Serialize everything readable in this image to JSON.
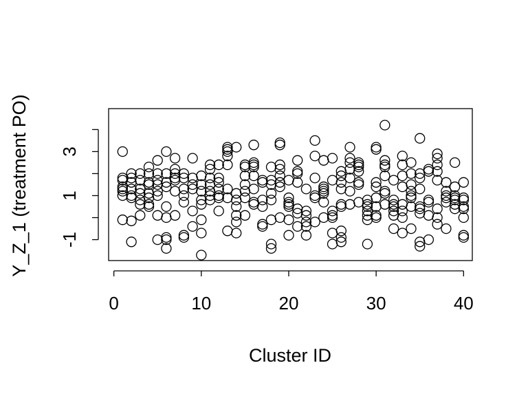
{
  "chart_data": {
    "type": "scatter",
    "title": "",
    "xlabel": "Cluster ID",
    "ylabel": "Y_Z_1 (treatment PO)",
    "xlim": [
      -0.6,
      41.0
    ],
    "ylim": [
      -1.95,
      4.95
    ],
    "x_ticks": [
      0,
      10,
      20,
      30,
      40
    ],
    "x_tick_labels": [
      "0",
      "10",
      "20",
      "30",
      "40"
    ],
    "y_ticks": [
      -1,
      0,
      1,
      2,
      3,
      4
    ],
    "y_tick_labels": [
      "-1",
      "",
      "1",
      "",
      "3",
      ""
    ],
    "grid": false,
    "legend": "none",
    "point_style": "open-circle",
    "colors": {
      "points": "#000000",
      "axes": "#000000",
      "background": "#ffffff"
    },
    "points": [
      [
        1,
        3.0
      ],
      [
        1,
        1.8
      ],
      [
        1,
        1.7
      ],
      [
        1,
        1.4
      ],
      [
        1,
        1.3
      ],
      [
        1,
        1.2
      ],
      [
        1,
        1.0
      ],
      [
        1,
        -0.1
      ],
      [
        2,
        2.0
      ],
      [
        2,
        1.8
      ],
      [
        2,
        1.6
      ],
      [
        2,
        1.3
      ],
      [
        2,
        1.0
      ],
      [
        2,
        0.9
      ],
      [
        2,
        -0.15
      ],
      [
        2,
        -1.1
      ],
      [
        3,
        2.0
      ],
      [
        3,
        1.7
      ],
      [
        3,
        1.3
      ],
      [
        3,
        1.1
      ],
      [
        3,
        0.8
      ],
      [
        3,
        0.6
      ],
      [
        3,
        0.1
      ],
      [
        4,
        2.3
      ],
      [
        4,
        2.0
      ],
      [
        4,
        1.6
      ],
      [
        4,
        1.5
      ],
      [
        4,
        1.1
      ],
      [
        4,
        0.9
      ],
      [
        4,
        0.6
      ],
      [
        4,
        0.5
      ],
      [
        5,
        2.6
      ],
      [
        5,
        2.0
      ],
      [
        5,
        1.7
      ],
      [
        5,
        1.5
      ],
      [
        5,
        1.2
      ],
      [
        5,
        1.0
      ],
      [
        5,
        0.1
      ],
      [
        5,
        -1.0
      ],
      [
        6,
        3.0
      ],
      [
        6,
        2.0
      ],
      [
        6,
        1.6
      ],
      [
        6,
        1.4
      ],
      [
        6,
        0.5
      ],
      [
        6,
        0.0
      ],
      [
        6,
        -0.9
      ],
      [
        6,
        -1.0
      ],
      [
        6,
        -1.4
      ],
      [
        7,
        2.7
      ],
      [
        7,
        2.2
      ],
      [
        7,
        2.0
      ],
      [
        7,
        1.8
      ],
      [
        7,
        1.7
      ],
      [
        7,
        1.2
      ],
      [
        7,
        0.1
      ],
      [
        8,
        2.0
      ],
      [
        8,
        1.8
      ],
      [
        8,
        1.3
      ],
      [
        8,
        1.0
      ],
      [
        8,
        0.7
      ],
      [
        8,
        -0.8
      ],
      [
        8,
        -0.9
      ],
      [
        9,
        2.7
      ],
      [
        9,
        1.8
      ],
      [
        9,
        1.5
      ],
      [
        9,
        1.3
      ],
      [
        9,
        0.3
      ],
      [
        9,
        -0.4
      ],
      [
        10,
        1.9
      ],
      [
        10,
        1.5
      ],
      [
        10,
        1.2
      ],
      [
        10,
        0.8
      ],
      [
        10,
        0.6
      ],
      [
        10,
        -0.1
      ],
      [
        10,
        -0.7
      ],
      [
        10,
        -1.7
      ],
      [
        11,
        2.4
      ],
      [
        11,
        2.2
      ],
      [
        11,
        1.8
      ],
      [
        11,
        1.5
      ],
      [
        11,
        1.2
      ],
      [
        11,
        1.0
      ],
      [
        11,
        0.8
      ],
      [
        12,
        2.4
      ],
      [
        12,
        1.8
      ],
      [
        12,
        1.6
      ],
      [
        12,
        1.3
      ],
      [
        12,
        1.0
      ],
      [
        12,
        0.9
      ],
      [
        12,
        0.3
      ],
      [
        13,
        3.2
      ],
      [
        13,
        3.1
      ],
      [
        13,
        3.0
      ],
      [
        13,
        2.8
      ],
      [
        13,
        2.4
      ],
      [
        13,
        1.3
      ],
      [
        13,
        0.9
      ],
      [
        13,
        -0.6
      ],
      [
        14,
        3.2
      ],
      [
        14,
        1.1
      ],
      [
        14,
        0.8
      ],
      [
        14,
        0.5
      ],
      [
        14,
        0.1
      ],
      [
        14,
        -0.2
      ],
      [
        14,
        -0.7
      ],
      [
        15,
        2.4
      ],
      [
        15,
        2.3
      ],
      [
        15,
        1.9
      ],
      [
        15,
        1.5
      ],
      [
        15,
        1.2
      ],
      [
        15,
        0.9
      ],
      [
        15,
        0.1
      ],
      [
        16,
        3.3
      ],
      [
        16,
        2.5
      ],
      [
        16,
        2.4
      ],
      [
        16,
        2.3
      ],
      [
        16,
        1.9
      ],
      [
        16,
        1.3
      ],
      [
        16,
        0.7
      ],
      [
        16,
        0.6
      ],
      [
        17,
        1.7
      ],
      [
        17,
        1.6
      ],
      [
        17,
        0.8
      ],
      [
        17,
        0.5
      ],
      [
        17,
        -0.3
      ],
      [
        17,
        -0.4
      ],
      [
        18,
        2.3
      ],
      [
        18,
        1.7
      ],
      [
        18,
        1.5
      ],
      [
        18,
        1.1
      ],
      [
        18,
        0.8
      ],
      [
        18,
        -0.1
      ],
      [
        18,
        -1.2
      ],
      [
        18,
        -1.4
      ],
      [
        19,
        3.4
      ],
      [
        19,
        3.3
      ],
      [
        19,
        2.4
      ],
      [
        19,
        2.2
      ],
      [
        19,
        1.9
      ],
      [
        19,
        1.6
      ],
      [
        19,
        1.4
      ],
      [
        19,
        0.0
      ],
      [
        20,
        1.7
      ],
      [
        20,
        0.9
      ],
      [
        20,
        0.7
      ],
      [
        20,
        0.6
      ],
      [
        20,
        0.5
      ],
      [
        20,
        -0.1
      ],
      [
        20,
        -0.8
      ],
      [
        21,
        2.6
      ],
      [
        21,
        2.1
      ],
      [
        21,
        2.0
      ],
      [
        21,
        1.6
      ],
      [
        21,
        0.4
      ],
      [
        21,
        0.2
      ],
      [
        21,
        -0.4
      ],
      [
        22,
        1.3
      ],
      [
        22,
        0.3
      ],
      [
        22,
        0.1
      ],
      [
        22,
        -0.2
      ],
      [
        22,
        -0.4
      ],
      [
        22,
        -0.8
      ],
      [
        23,
        3.5
      ],
      [
        23,
        2.8
      ],
      [
        23,
        1.8
      ],
      [
        23,
        1.0
      ],
      [
        23,
        0.9
      ],
      [
        23,
        -0.2
      ],
      [
        24,
        2.6
      ],
      [
        24,
        1.4
      ],
      [
        24,
        1.3
      ],
      [
        24,
        1.2
      ],
      [
        24,
        1.1
      ],
      [
        24,
        0.7
      ],
      [
        24,
        0.0
      ],
      [
        25,
        2.7
      ],
      [
        25,
        1.7
      ],
      [
        25,
        0.3
      ],
      [
        25,
        0.1
      ],
      [
        25,
        0.0
      ],
      [
        25,
        -0.7
      ],
      [
        25,
        -1.2
      ],
      [
        26,
        2.1
      ],
      [
        26,
        1.9
      ],
      [
        26,
        1.6
      ],
      [
        26,
        1.3
      ],
      [
        26,
        0.6
      ],
      [
        26,
        0.5
      ],
      [
        26,
        -0.6
      ],
      [
        26,
        -0.9
      ],
      [
        26,
        -1.1
      ],
      [
        27,
        3.2
      ],
      [
        27,
        2.7
      ],
      [
        27,
        2.5
      ],
      [
        27,
        2.2
      ],
      [
        27,
        1.8
      ],
      [
        27,
        1.2
      ],
      [
        27,
        0.6
      ],
      [
        28,
        2.5
      ],
      [
        28,
        2.4
      ],
      [
        28,
        2.3
      ],
      [
        28,
        2.1
      ],
      [
        28,
        1.6
      ],
      [
        28,
        1.5
      ],
      [
        28,
        0.7
      ],
      [
        29,
        0.8
      ],
      [
        29,
        0.6
      ],
      [
        29,
        0.5
      ],
      [
        29,
        0.3
      ],
      [
        29,
        0.1
      ],
      [
        29,
        -0.1
      ],
      [
        29,
        -1.2
      ],
      [
        30,
        3.2
      ],
      [
        30,
        3.1
      ],
      [
        30,
        1.6
      ],
      [
        30,
        1.4
      ],
      [
        30,
        0.9
      ],
      [
        30,
        0.5
      ],
      [
        30,
        0.1
      ],
      [
        30,
        0.0
      ],
      [
        31,
        4.2
      ],
      [
        31,
        2.6
      ],
      [
        31,
        2.4
      ],
      [
        31,
        2.3
      ],
      [
        31,
        1.9
      ],
      [
        31,
        1.2
      ],
      [
        31,
        1.1
      ],
      [
        31,
        0.6
      ],
      [
        32,
        1.7
      ],
      [
        32,
        0.8
      ],
      [
        32,
        0.6
      ],
      [
        32,
        0.5
      ],
      [
        32,
        0.3
      ],
      [
        32,
        0.1
      ],
      [
        32,
        -0.5
      ],
      [
        33,
        2.8
      ],
      [
        33,
        2.4
      ],
      [
        33,
        1.9
      ],
      [
        33,
        1.4
      ],
      [
        33,
        0.6
      ],
      [
        33,
        0.3
      ],
      [
        33,
        0.0
      ],
      [
        33,
        -0.7
      ],
      [
        34,
        2.5
      ],
      [
        34,
        2.0
      ],
      [
        34,
        1.5
      ],
      [
        34,
        1.2
      ],
      [
        34,
        1.0
      ],
      [
        34,
        0.9
      ],
      [
        34,
        0.5
      ],
      [
        34,
        -0.5
      ],
      [
        35,
        3.6
      ],
      [
        35,
        2.0
      ],
      [
        35,
        1.8
      ],
      [
        35,
        1.3
      ],
      [
        35,
        0.5
      ],
      [
        35,
        0.4
      ],
      [
        35,
        0.2
      ],
      [
        35,
        -1.1
      ],
      [
        35,
        -1.3
      ],
      [
        36,
        2.2
      ],
      [
        36,
        2.1
      ],
      [
        36,
        0.8
      ],
      [
        36,
        0.7
      ],
      [
        36,
        0.1
      ],
      [
        36,
        -1.0
      ],
      [
        37,
        2.9
      ],
      [
        37,
        2.7
      ],
      [
        37,
        2.4
      ],
      [
        37,
        2.1
      ],
      [
        37,
        1.7
      ],
      [
        37,
        0.4
      ],
      [
        37,
        0.0
      ],
      [
        37,
        -0.3
      ],
      [
        38,
        1.6
      ],
      [
        38,
        1.2
      ],
      [
        38,
        1.0
      ],
      [
        38,
        0.9
      ],
      [
        38,
        0.7
      ],
      [
        38,
        -0.5
      ],
      [
        39,
        2.5
      ],
      [
        39,
        1.4
      ],
      [
        39,
        1.0
      ],
      [
        39,
        0.9
      ],
      [
        39,
        0.8
      ],
      [
        39,
        0.6
      ],
      [
        39,
        0.4
      ],
      [
        40,
        1.6
      ],
      [
        40,
        0.9
      ],
      [
        40,
        0.8
      ],
      [
        40,
        0.5
      ],
      [
        40,
        0.4
      ],
      [
        40,
        0.0
      ],
      [
        40,
        -0.8
      ],
      [
        40,
        -0.9
      ]
    ]
  }
}
